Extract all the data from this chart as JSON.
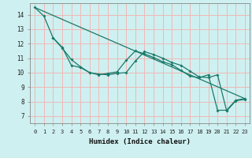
{
  "xlabel": "Humidex (Indice chaleur)",
  "bg_color": "#cff0f0",
  "grid_color": "#f0b8b8",
  "line_color": "#1a7a6a",
  "xlim": [
    -0.5,
    23.5
  ],
  "ylim": [
    6.5,
    14.8
  ],
  "yticks": [
    7,
    8,
    9,
    10,
    11,
    12,
    13,
    14
  ],
  "xticks": [
    0,
    1,
    2,
    3,
    4,
    5,
    6,
    7,
    8,
    9,
    10,
    11,
    12,
    13,
    14,
    15,
    16,
    17,
    18,
    19,
    20,
    21,
    22,
    23
  ],
  "line1_x": [
    0,
    1,
    2,
    3,
    4,
    5,
    6,
    7,
    8,
    9,
    10,
    11,
    12,
    13,
    14,
    15,
    16,
    17,
    18,
    19,
    20,
    21,
    22,
    23
  ],
  "line1_y": [
    14.5,
    13.9,
    12.4,
    11.75,
    10.5,
    10.35,
    10.0,
    9.85,
    9.95,
    10.05,
    10.85,
    11.5,
    11.3,
    11.05,
    10.75,
    10.55,
    10.15,
    9.75,
    9.65,
    9.85,
    7.4,
    7.4,
    8.1,
    8.2
  ],
  "line2_x": [
    2,
    3,
    4,
    5,
    6,
    7,
    8,
    9,
    10,
    11,
    12,
    13,
    14,
    15,
    16,
    17,
    18,
    19,
    20,
    21,
    22,
    23
  ],
  "line2_y": [
    12.4,
    11.7,
    10.9,
    10.4,
    10.0,
    9.9,
    9.85,
    9.95,
    10.0,
    10.8,
    11.45,
    11.25,
    11.0,
    10.7,
    10.5,
    10.1,
    9.7,
    9.65,
    9.85,
    7.35,
    8.05,
    8.15
  ],
  "line3_x": [
    0,
    23
  ],
  "line3_y": [
    14.5,
    8.2
  ]
}
